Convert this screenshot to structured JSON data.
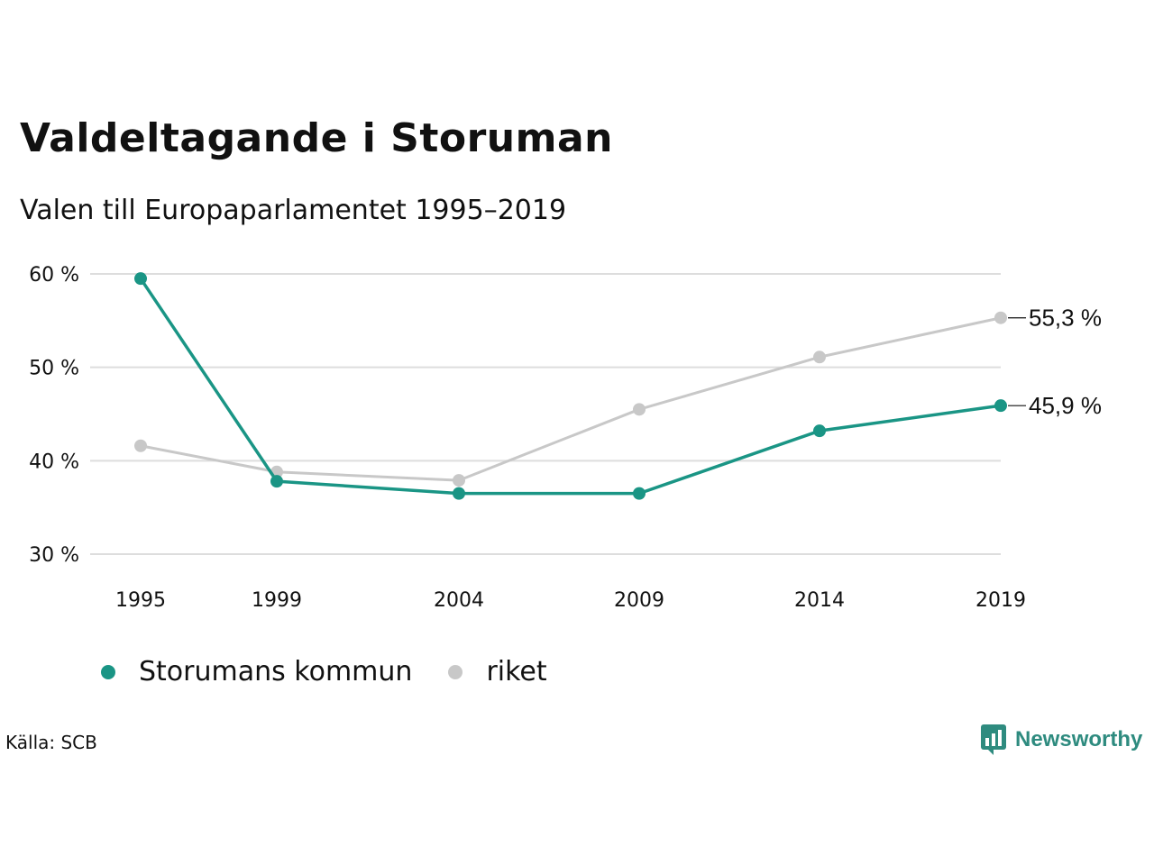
{
  "title": "Valdeltagande i Storuman",
  "subtitle": "Valen till Europaparlamentet 1995–2019",
  "source": "Källa: SCB",
  "brand": {
    "name": "Newsworthy",
    "icon": "newsworthy-logo-icon"
  },
  "colors": {
    "storuman": "#1a9585",
    "riket": "#c8c8c8",
    "grid": "#dddddd",
    "brand": "#2e8b7f"
  },
  "chart_data": {
    "type": "line",
    "title": "Valdeltagande i Storuman",
    "subtitle": "Valen till Europaparlamentet 1995–2019",
    "x": [
      1995,
      1999,
      2004,
      2009,
      2014,
      2019
    ],
    "ylim": [
      30,
      60
    ],
    "yticks": [
      30,
      40,
      50,
      60
    ],
    "ytick_labels": [
      "30 %",
      "40 %",
      "50 %",
      "60 %"
    ],
    "xtick_labels": [
      "1995",
      "1999",
      "2004",
      "2009",
      "2014",
      "2019"
    ],
    "grid": true,
    "legend_position": "bottom-left",
    "series": [
      {
        "name": "Storumans kommun",
        "values": [
          59.5,
          37.8,
          36.5,
          36.5,
          43.2,
          45.9
        ],
        "end_label": "45,9 %",
        "color": "#1a9585"
      },
      {
        "name": "riket",
        "values": [
          41.6,
          38.8,
          37.9,
          45.5,
          51.1,
          55.3
        ],
        "end_label": "55,3 %",
        "color": "#c8c8c8"
      }
    ]
  }
}
